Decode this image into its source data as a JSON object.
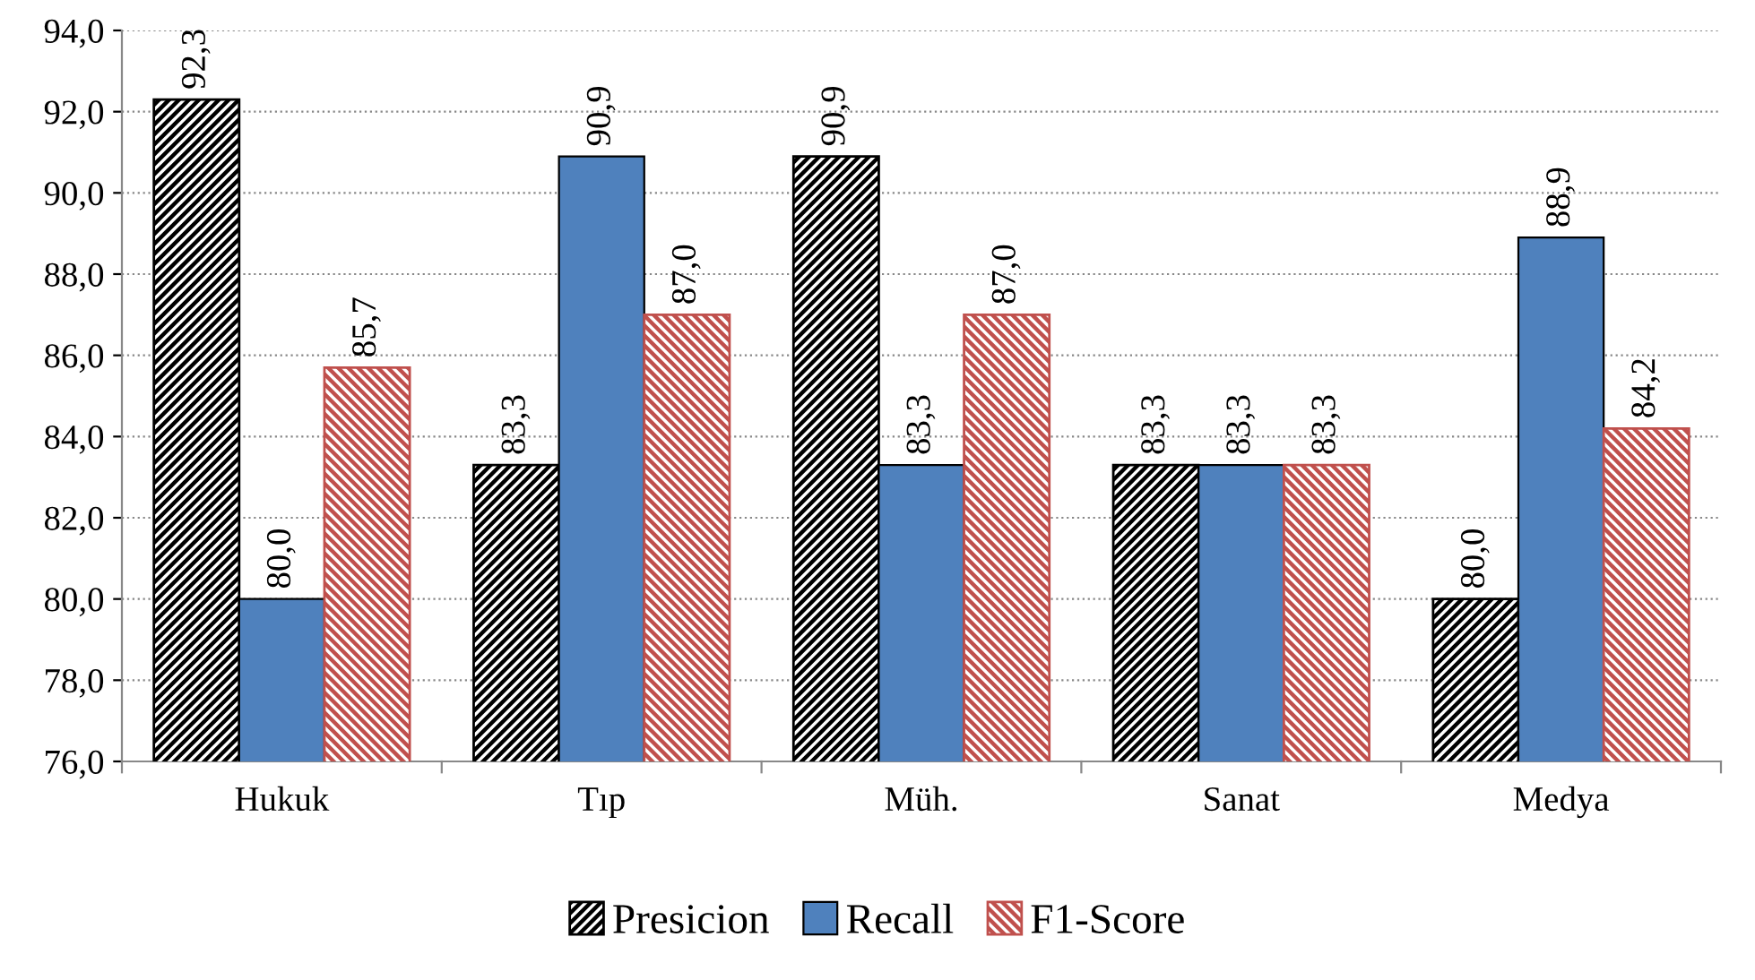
{
  "chart_data": {
    "type": "bar",
    "categories": [
      "Hukuk",
      "Tıp",
      "Müh.",
      "Sanat",
      "Medya"
    ],
    "series": [
      {
        "name": "Presicion",
        "color": "#000000",
        "values": [
          92.3,
          83.3,
          90.9,
          83.3,
          80.0
        ],
        "value_labels": [
          "92,3",
          "83,3",
          "90,9",
          "83,3",
          "80,0"
        ]
      },
      {
        "name": "Recall",
        "color": "#4f81bd",
        "values": [
          80.0,
          90.9,
          83.3,
          83.3,
          88.9
        ],
        "value_labels": [
          "80,0",
          "90,9",
          "83,3",
          "83,3",
          "88,9"
        ]
      },
      {
        "name": "F1-Score",
        "color": "#c0504d",
        "values": [
          85.7,
          87.0,
          87.0,
          83.3,
          84.2
        ],
        "value_labels": [
          "85,7",
          "87,0",
          "87,0",
          "83,3",
          "84,2"
        ]
      }
    ],
    "ylim": [
      76,
      94
    ],
    "yticks": [
      {
        "value": 76,
        "label": "76,0"
      },
      {
        "value": 78,
        "label": "78,0"
      },
      {
        "value": 80,
        "label": "80,0"
      },
      {
        "value": 82,
        "label": "82,0"
      },
      {
        "value": 84,
        "label": "84,0"
      },
      {
        "value": 86,
        "label": "86,0"
      },
      {
        "value": 88,
        "label": "88,0"
      },
      {
        "value": 90,
        "label": "90,0"
      },
      {
        "value": 92,
        "label": "92,0"
      },
      {
        "value": 94,
        "label": "94,0"
      }
    ],
    "grid": "y",
    "legend": "bottom"
  }
}
